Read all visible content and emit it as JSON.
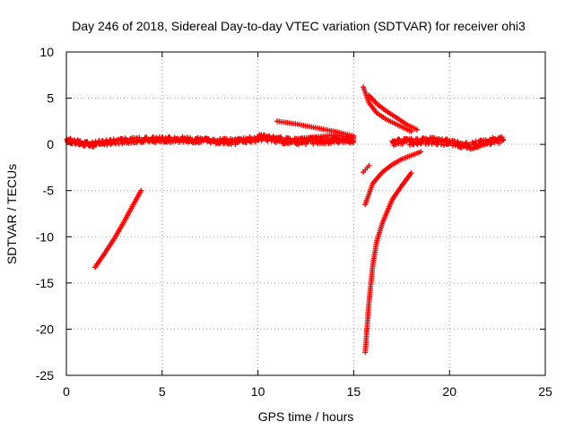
{
  "chart_data": {
    "type": "scatter",
    "title": "Day 246 of 2018, Sidereal Day-to-day VTEC variation (SDTVAR) for receiver ohi3",
    "xlabel": "GPS time / hours",
    "ylabel": "SDTVAR / TECUs",
    "xlim": [
      0,
      25
    ],
    "ylim": [
      -25,
      10
    ],
    "xticks": [
      0,
      5,
      10,
      15,
      20,
      25
    ],
    "yticks": [
      -25,
      -20,
      -15,
      -10,
      -5,
      0,
      5,
      10
    ],
    "grid": true,
    "marker": "+",
    "color": "#ff0000",
    "segments": [
      {
        "name": "main-band-early",
        "x_start": 0.0,
        "x_end": 10.0,
        "y_center": [
          0.5,
          0.0,
          0.3,
          0.5,
          0.5,
          0.5,
          0.4,
          0.3,
          0.6
        ],
        "spread": 0.6
      },
      {
        "name": "rising-arc",
        "x": [
          1.5,
          2.0,
          2.5,
          3.0,
          3.5,
          3.9
        ],
        "y": [
          -13.3,
          -11.8,
          -10.2,
          -8.4,
          -6.5,
          -5.0
        ]
      },
      {
        "name": "band-10-15",
        "x": [
          10.0,
          11.0,
          12.0,
          13.0,
          14.0,
          15.0
        ],
        "y": [
          0.8,
          0.5,
          0.3,
          0.4,
          0.5,
          0.5
        ],
        "spread": 0.7
      },
      {
        "name": "descending-arc",
        "x": [
          11.0,
          12.0,
          13.0,
          14.0,
          15.0
        ],
        "y": [
          2.5,
          2.2,
          1.8,
          1.4,
          0.9
        ]
      },
      {
        "name": "lower-arc",
        "x": [
          12.0,
          13.0,
          14.0,
          15.0
        ],
        "y": [
          0.6,
          0.8,
          1.0,
          0.7
        ]
      },
      {
        "name": "upper-decay",
        "x": [
          15.5,
          15.8,
          16.2,
          16.7,
          17.3,
          18.0
        ],
        "y": [
          6.2,
          4.5,
          3.4,
          2.7,
          2.1,
          1.4
        ]
      },
      {
        "name": "flank-arc",
        "x": [
          15.8,
          16.2,
          16.7,
          17.3,
          17.8,
          18.3
        ],
        "y": [
          5.3,
          4.4,
          3.6,
          2.8,
          2.1,
          1.6
        ]
      },
      {
        "name": "late-band",
        "x": [
          17.0,
          18.0,
          19.0,
          20.0,
          21.0,
          22.0,
          22.8
        ],
        "y": [
          0.2,
          0.3,
          0.4,
          0.2,
          -0.2,
          0.3,
          0.5
        ],
        "spread": 0.7
      },
      {
        "name": "negative-rise",
        "x": [
          15.6,
          16.0,
          16.5,
          17.0,
          17.5,
          18.0,
          18.5
        ],
        "y": [
          -6.5,
          -4.2,
          -3.0,
          -2.2,
          -1.6,
          -1.2,
          -0.8
        ]
      },
      {
        "name": "steep-fall-wide",
        "x": [
          15.6,
          15.8,
          16.0,
          16.2,
          16.5,
          17.0,
          17.5,
          18.0
        ],
        "y": [
          -22.5,
          -17.0,
          -13.0,
          -10.5,
          -8.5,
          -6.0,
          -4.5,
          -3.1
        ]
      },
      {
        "name": "isolated-pair",
        "x": [
          15.5,
          15.8
        ],
        "y": [
          -3.0,
          -2.3
        ]
      }
    ]
  }
}
